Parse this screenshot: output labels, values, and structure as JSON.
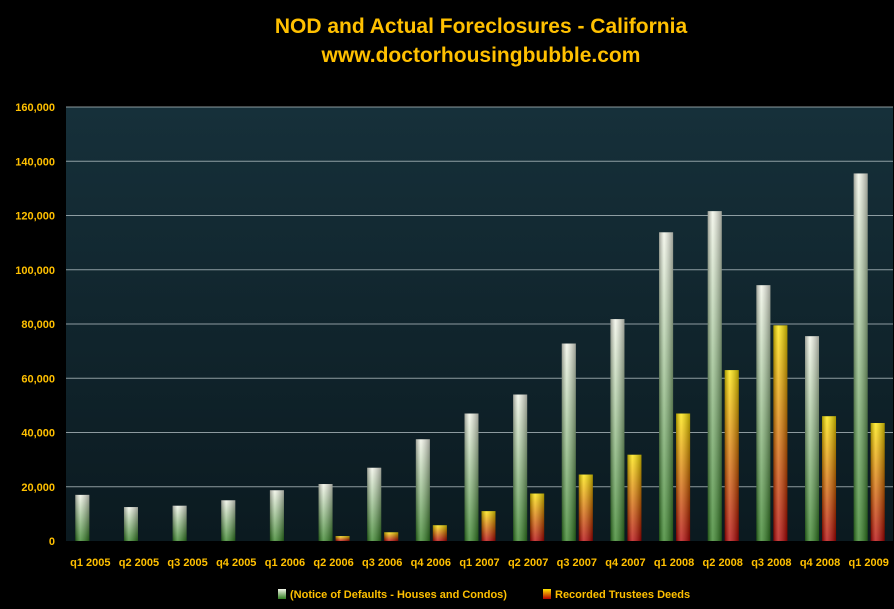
{
  "colors": {
    "background": "#000000",
    "plot_top": "#16303A",
    "plot_bottom": "#0B1A20",
    "text_accent": "#FFC000",
    "gridline": "#B8C4C8",
    "nod_top": "#F2F5E8",
    "nod_bottom": "#2E7D1E",
    "deeds_top": "#FFE600",
    "deeds_bottom": "#B30000"
  },
  "chart_data": {
    "type": "bar",
    "title": "NOD and Actual Foreclosures - California",
    "subtitle": "www.doctorhousingbubble.com",
    "xlabel": "",
    "ylabel": "",
    "ylim": [
      0,
      160000
    ],
    "yticks": [
      0,
      20000,
      40000,
      60000,
      80000,
      100000,
      120000,
      140000,
      160000
    ],
    "ytick_labels": [
      "0",
      "20,000",
      "40,000",
      "60,000",
      "80,000",
      "100,000",
      "120,000",
      "140,000",
      "160,000"
    ],
    "grid": true,
    "legend_position": "bottom",
    "categories": [
      "q1 2005",
      "q2 2005",
      "q3 2005",
      "q4 2005",
      "q1 2006",
      "q2 2006",
      "q3 2006",
      "q4 2006",
      "q1 2007",
      "q2 2007",
      "q3 2007",
      "q4 2007",
      "q1 2008",
      "q2 2008",
      "q3 2008",
      "q4 2008",
      "q1 2009"
    ],
    "series": [
      {
        "name": "(Notice of Defaults - Houses and Condos)",
        "values": [
          17000,
          12500,
          13000,
          15000,
          18700,
          21000,
          27000,
          37500,
          47000,
          54000,
          72800,
          81800,
          113800,
          121600,
          94300,
          75500,
          135500
        ]
      },
      {
        "name": "Recorded Trustees Deeds",
        "values": [
          0,
          0,
          0,
          0,
          0,
          1800,
          3200,
          5800,
          11000,
          17500,
          24500,
          31800,
          47000,
          63000,
          79500,
          46000,
          43500
        ]
      }
    ]
  }
}
